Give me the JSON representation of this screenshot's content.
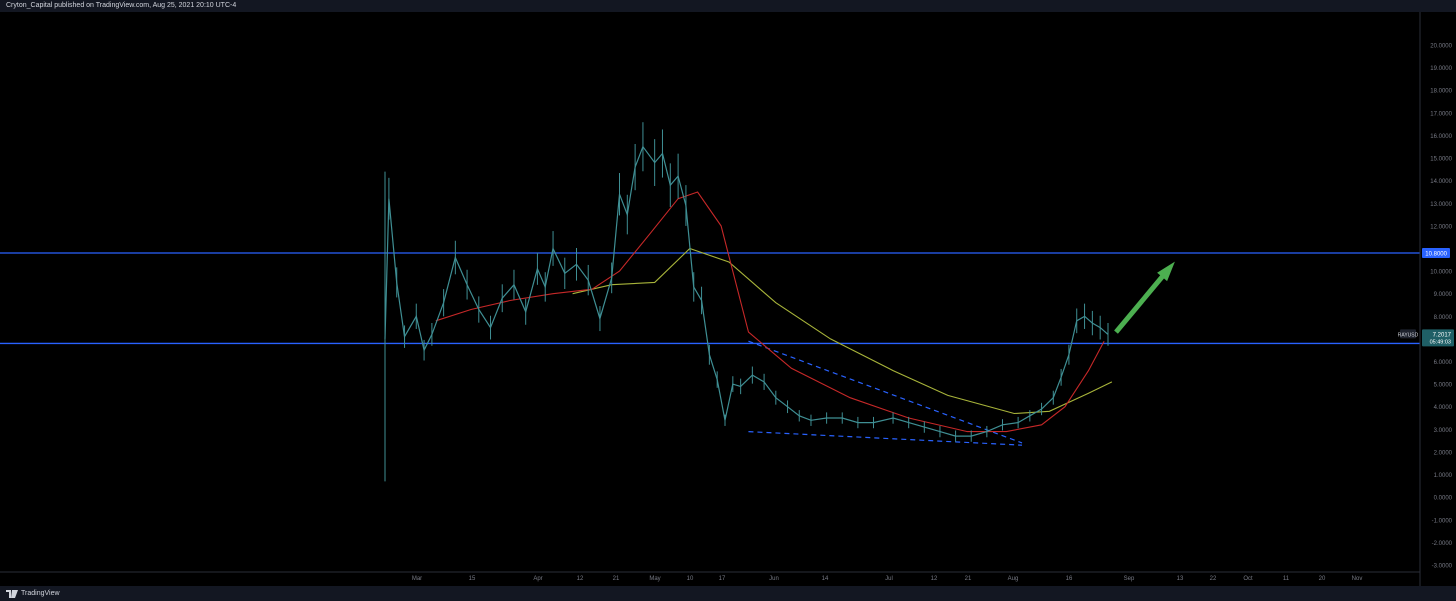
{
  "header": {
    "publish_text": "Cryton_Capital published on TradingView.com, Aug 25, 2021 20:10 UTC-4"
  },
  "footer": {
    "brand": "TradingView"
  },
  "colors": {
    "background": "#000000",
    "frame": "#131722",
    "candles": "#3f8f94",
    "ma_fast": "#c62828",
    "ma_slow": "#a8b43a",
    "level_line": "#2962ff",
    "level_label_bg": "#2962ff",
    "price_label_bg": "#1f5f66",
    "trendline": "#2962ff",
    "arrow": "#4caf50",
    "axis_text": "#787b86"
  },
  "chart_data": {
    "type": "line",
    "symbol": "RAYUSD",
    "last_price": "7.2017",
    "countdown": "05:49:03",
    "ylim": [
      -4,
      21
    ],
    "y_ticks": [
      "-3.0000",
      "-2.0000",
      "-1.0000",
      "0.0000",
      "1.0000",
      "2.0000",
      "3.0000",
      "4.0000",
      "5.0000",
      "6.0000",
      "7.0000",
      "8.0000",
      "9.0000",
      "10.0000",
      "12.0000",
      "13.0000",
      "14.0000",
      "15.0000",
      "16.0000",
      "17.0000",
      "18.0000",
      "19.0000",
      "20.0000"
    ],
    "x_ticks": [
      "Mar",
      "15",
      "Apr",
      "12",
      "21",
      "May",
      "10",
      "17",
      "Jun",
      "14",
      "Jul",
      "12",
      "21",
      "Aug",
      "16",
      "Sep",
      "13",
      "22",
      "Oct",
      "11",
      "20",
      "Nov"
    ],
    "horizontal_levels": [
      {
        "value": 10.8,
        "label": "10.8000"
      },
      {
        "value": 6.8,
        "label": ""
      }
    ],
    "x_range": [
      "2021-02-21",
      "2021-11-06"
    ],
    "price_series": {
      "name": "",
      "x": [
        "2021-02-21",
        "2021-02-22",
        "2021-02-24",
        "2021-02-26",
        "2021-03-01",
        "2021-03-03",
        "2021-03-05",
        "2021-03-08",
        "2021-03-11",
        "2021-03-14",
        "2021-03-17",
        "2021-03-20",
        "2021-03-23",
        "2021-03-26",
        "2021-03-29",
        "2021-04-01",
        "2021-04-03",
        "2021-04-05",
        "2021-04-08",
        "2021-04-11",
        "2021-04-14",
        "2021-04-17",
        "2021-04-20",
        "2021-04-22",
        "2021-04-24",
        "2021-04-26",
        "2021-04-28",
        "2021-05-01",
        "2021-05-03",
        "2021-05-05",
        "2021-05-07",
        "2021-05-09",
        "2021-05-11",
        "2021-05-13",
        "2021-05-15",
        "2021-05-17",
        "2021-05-19",
        "2021-05-21",
        "2021-05-23",
        "2021-05-26",
        "2021-05-29",
        "2021-06-01",
        "2021-06-04",
        "2021-06-07",
        "2021-06-10",
        "2021-06-14",
        "2021-06-18",
        "2021-06-22",
        "2021-06-26",
        "2021-07-01",
        "2021-07-05",
        "2021-07-09",
        "2021-07-13",
        "2021-07-17",
        "2021-07-21",
        "2021-07-25",
        "2021-07-29",
        "2021-08-02",
        "2021-08-05",
        "2021-08-08",
        "2021-08-11",
        "2021-08-13",
        "2021-08-15",
        "2021-08-17",
        "2021-08-19",
        "2021-08-21",
        "2021-08-23",
        "2021-08-25"
      ],
      "values": [
        7.0,
        13.2,
        9.5,
        7.1,
        8.0,
        6.5,
        7.2,
        8.6,
        10.6,
        9.4,
        8.3,
        7.5,
        8.8,
        9.4,
        8.2,
        10.1,
        9.3,
        11.0,
        9.9,
        10.3,
        9.6,
        7.9,
        9.7,
        13.4,
        12.5,
        14.6,
        15.5,
        14.8,
        15.2,
        13.8,
        14.2,
        12.9,
        9.3,
        8.7,
        6.3,
        5.2,
        3.4,
        5.0,
        4.9,
        5.4,
        5.1,
        4.4,
        4.0,
        3.6,
        3.4,
        3.5,
        3.5,
        3.3,
        3.3,
        3.5,
        3.3,
        3.1,
        2.9,
        2.7,
        2.7,
        2.9,
        3.2,
        3.3,
        3.6,
        3.9,
        4.4,
        5.3,
        6.3,
        7.8,
        8.0,
        7.7,
        7.5,
        7.2
      ]
    },
    "ma_fast": {
      "name": "",
      "x": [
        "2021-03-06",
        "2021-03-15",
        "2021-03-25",
        "2021-04-05",
        "2021-04-15",
        "2021-04-22",
        "2021-04-30",
        "2021-05-07",
        "2021-05-12",
        "2021-05-18",
        "2021-05-25",
        "2021-06-05",
        "2021-06-20",
        "2021-07-05",
        "2021-07-20",
        "2021-07-30",
        "2021-08-08",
        "2021-08-14",
        "2021-08-20",
        "2021-08-24"
      ],
      "values": [
        7.8,
        8.3,
        8.7,
        9.0,
        9.2,
        10.0,
        11.7,
        13.2,
        13.5,
        12.0,
        7.3,
        5.7,
        4.4,
        3.5,
        2.9,
        2.9,
        3.2,
        4.0,
        5.6,
        6.9
      ]
    },
    "ma_slow": {
      "name": "",
      "x": [
        "2021-04-10",
        "2021-04-20",
        "2021-05-01",
        "2021-05-10",
        "2021-05-20",
        "2021-06-01",
        "2021-06-15",
        "2021-07-01",
        "2021-07-15",
        "2021-08-01",
        "2021-08-10",
        "2021-08-20",
        "2021-08-26"
      ],
      "values": [
        9.0,
        9.4,
        9.5,
        11.0,
        10.4,
        8.6,
        7.0,
        5.6,
        4.5,
        3.7,
        3.8,
        4.6,
        5.1
      ]
    },
    "trendlines": [
      {
        "x": [
          "2021-05-25",
          "2021-08-03"
        ],
        "values": [
          6.9,
          2.4
        ],
        "style": "dashed"
      },
      {
        "x": [
          "2021-05-25",
          "2021-08-03"
        ],
        "values": [
          2.9,
          2.3
        ],
        "style": "dashed"
      }
    ],
    "annotation_arrow": {
      "x": [
        "2021-08-25",
        "2021-09-06"
      ],
      "values": [
        7.3,
        10.2
      ],
      "color": "green"
    },
    "grid": false
  }
}
